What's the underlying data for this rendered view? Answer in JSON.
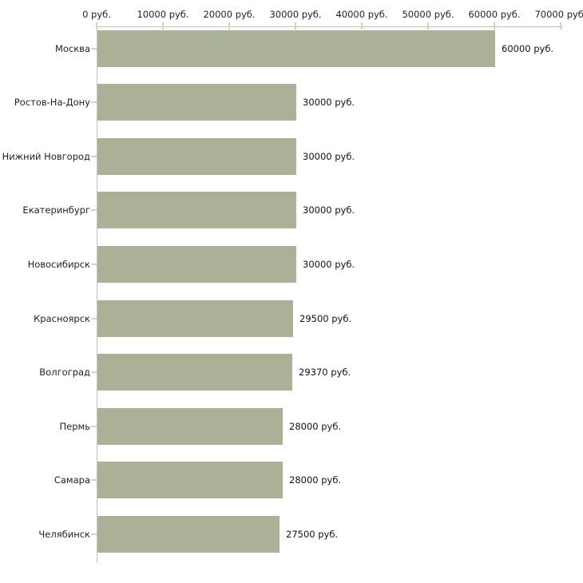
{
  "chart_data": {
    "type": "bar",
    "orientation": "horizontal",
    "title": "",
    "categories": [
      "Москва",
      "Ростов-На-Дону",
      "Нижний Новгород",
      "Екатеринбург",
      "Новосибирск",
      "Красноярск",
      "Волгоград",
      "Пермь",
      "Самара",
      "Челябинск"
    ],
    "values": [
      60000,
      30000,
      30000,
      30000,
      30000,
      29500,
      29370,
      28000,
      28000,
      27500
    ],
    "value_labels": [
      "60000 руб.",
      "30000 руб.",
      "30000 руб.",
      "30000 руб.",
      "30000 руб.",
      "29500 руб.",
      "29370 руб.",
      "28000 руб.",
      "28000 руб.",
      "27500 руб."
    ],
    "x_axis": {
      "position": "top",
      "min": 0,
      "max": 70000,
      "tick_values": [
        0,
        10000,
        20000,
        30000,
        40000,
        50000,
        60000,
        70000
      ],
      "tick_labels": [
        "0 руб.",
        "10000 руб.",
        "20000 руб.",
        "30000 руб.",
        "40000 руб.",
        "50000 руб.",
        "60000 руб.",
        "70000 руб."
      ]
    },
    "unit": "руб.",
    "grid": false,
    "legend": false,
    "colors": {
      "bar": "#abb197",
      "axis_line": "#c0c0c0",
      "x_tick_mark": "#d6d6a8",
      "y_tick_mark": "#d6d6b0",
      "text": "#1f1f1f",
      "background": "#ffffff"
    }
  }
}
